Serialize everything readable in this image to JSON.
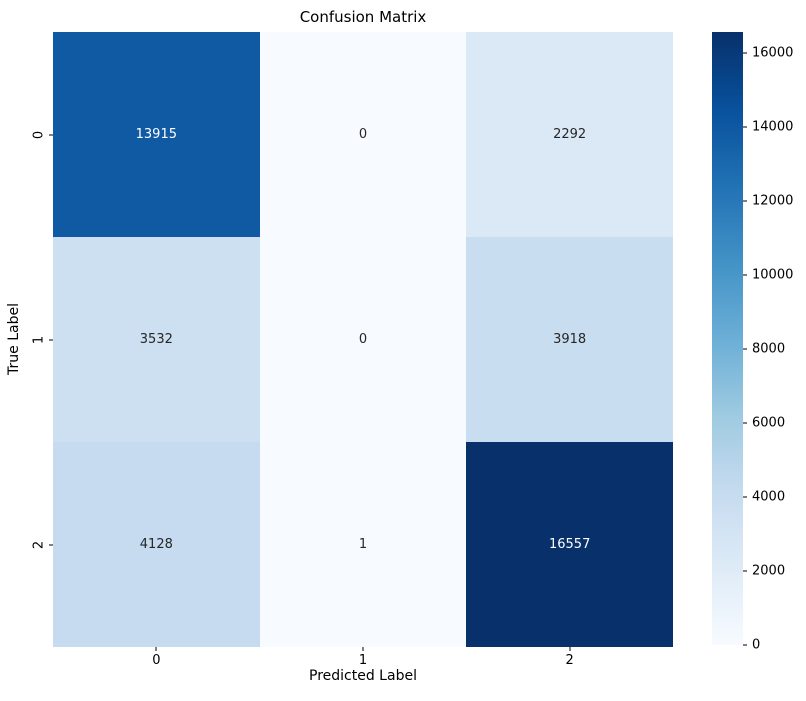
{
  "chart_data": {
    "type": "heatmap",
    "title": "Confusion Matrix",
    "xlabel": "Predicted Label",
    "ylabel": "True Label",
    "x_tick_labels": [
      "0",
      "1",
      "2"
    ],
    "y_tick_labels": [
      "0",
      "1",
      "2"
    ],
    "matrix": [
      [
        13915,
        0,
        2292
      ],
      [
        3532,
        0,
        3918
      ],
      [
        4128,
        1,
        16557
      ]
    ],
    "vmin": 0,
    "vmax": 16557,
    "colormap": "Blues",
    "grid": false,
    "legend_position": "colorbar-right",
    "cell_colors": [
      [
        "#0f5aa3",
        "#f7fbff",
        "#dbe9f6"
      ],
      [
        "#cde0f1",
        "#f7fbff",
        "#c9ddf0"
      ],
      [
        "#c6dbef",
        "#f7fbff",
        "#08306b"
      ]
    ],
    "cell_text_colors": [
      [
        "#ffffff",
        "#262626",
        "#262626"
      ],
      [
        "#262626",
        "#262626",
        "#262626"
      ],
      [
        "#262626",
        "#262626",
        "#ffffff"
      ]
    ],
    "colorbar": {
      "ticks": [
        0,
        2000,
        4000,
        6000,
        8000,
        10000,
        12000,
        14000,
        16000
      ],
      "gradient_stops": [
        {
          "t": 0.0,
          "color": "#f7fbff"
        },
        {
          "t": 0.125,
          "color": "#deebf7"
        },
        {
          "t": 0.25,
          "color": "#c6dbef"
        },
        {
          "t": 0.375,
          "color": "#9ecae1"
        },
        {
          "t": 0.5,
          "color": "#6baed6"
        },
        {
          "t": 0.625,
          "color": "#4292c6"
        },
        {
          "t": 0.75,
          "color": "#2171b5"
        },
        {
          "t": 0.875,
          "color": "#08519c"
        },
        {
          "t": 1.0,
          "color": "#08306b"
        }
      ]
    }
  }
}
